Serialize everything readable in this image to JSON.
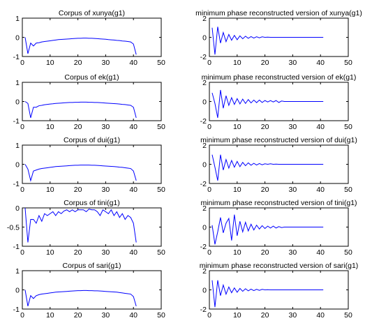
{
  "colors": {
    "line": "#0000ff",
    "axes": "#000000",
    "background": "#ffffff"
  },
  "chart_data": [
    {
      "type": "line",
      "title": "Corpus of xunya(g1)",
      "xlabel": "",
      "ylabel": "",
      "xlim": [
        0,
        50
      ],
      "ylim": [
        -1,
        1
      ],
      "xticks": [
        0,
        10,
        20,
        30,
        40,
        50
      ],
      "yticks": [
        -1,
        0,
        1
      ],
      "x": [
        1,
        2,
        3,
        4,
        5,
        6,
        7,
        8,
        9,
        10,
        11,
        12,
        13,
        14,
        15,
        16,
        17,
        18,
        19,
        20,
        21,
        22,
        23,
        24,
        25,
        26,
        27,
        28,
        29,
        30,
        31,
        32,
        33,
        34,
        35,
        36,
        37,
        38,
        39,
        40,
        41
      ],
      "values": [
        0.0,
        -0.85,
        -0.3,
        -0.45,
        -0.3,
        -0.28,
        -0.24,
        -0.22,
        -0.2,
        -0.18,
        -0.16,
        -0.14,
        -0.12,
        -0.11,
        -0.1,
        -0.09,
        -0.08,
        -0.07,
        -0.06,
        -0.05,
        -0.05,
        -0.04,
        -0.04,
        -0.05,
        -0.05,
        -0.06,
        -0.07,
        -0.08,
        -0.09,
        -0.1,
        -0.12,
        -0.13,
        -0.14,
        -0.16,
        -0.17,
        -0.19,
        -0.2,
        -0.22,
        -0.24,
        -0.35,
        -0.9
      ]
    },
    {
      "type": "line",
      "title": "minimum phase reconstructed version of xunya(g1)",
      "xlabel": "",
      "ylabel": "",
      "xlim": [
        0,
        50
      ],
      "ylim": [
        -2,
        2
      ],
      "xticks": [
        0,
        10,
        20,
        30,
        40,
        50
      ],
      "yticks": [
        -2,
        0,
        2
      ],
      "x": [
        1,
        2,
        3,
        4,
        5,
        6,
        7,
        8,
        9,
        10,
        11,
        12,
        13,
        14,
        15,
        16,
        17,
        18,
        19,
        20,
        21,
        22,
        23,
        24,
        25,
        26,
        27,
        28,
        29,
        30,
        31,
        32,
        33,
        34,
        35,
        36,
        37,
        38,
        39,
        40,
        41
      ],
      "values": [
        1.0,
        -1.8,
        1.1,
        -0.6,
        0.5,
        -0.45,
        0.3,
        -0.3,
        0.2,
        -0.25,
        0.15,
        -0.15,
        0.12,
        -0.1,
        0.08,
        -0.08,
        0.06,
        -0.05,
        0.05,
        0.0,
        0.02,
        0.0,
        0.0,
        0.0,
        0.0,
        0.0,
        0.0,
        0.0,
        0.0,
        0.0,
        0.0,
        0.0,
        0.0,
        0.0,
        0.0,
        0.0,
        0.0,
        0.0,
        0.0,
        0.0,
        0.0
      ]
    },
    {
      "type": "line",
      "title": "Corpus of ek(g1)",
      "xlabel": "",
      "ylabel": "",
      "xlim": [
        0,
        50
      ],
      "ylim": [
        -1,
        1
      ],
      "xticks": [
        0,
        10,
        20,
        30,
        40,
        50
      ],
      "yticks": [
        -1,
        0,
        1
      ],
      "x": [
        1,
        2,
        3,
        4,
        5,
        6,
        7,
        8,
        9,
        10,
        11,
        12,
        13,
        14,
        15,
        16,
        17,
        18,
        19,
        20,
        21,
        22,
        23,
        24,
        25,
        26,
        27,
        28,
        29,
        30,
        31,
        32,
        33,
        34,
        35,
        36,
        37,
        38,
        39,
        40,
        41
      ],
      "values": [
        0.0,
        -0.1,
        -0.85,
        -0.3,
        -0.3,
        -0.22,
        -0.2,
        -0.17,
        -0.15,
        -0.13,
        -0.12,
        -0.1,
        -0.09,
        -0.08,
        -0.07,
        -0.06,
        -0.05,
        -0.05,
        -0.04,
        -0.04,
        -0.03,
        -0.03,
        -0.03,
        -0.04,
        -0.04,
        -0.05,
        -0.05,
        -0.06,
        -0.07,
        -0.08,
        -0.09,
        -0.1,
        -0.11,
        -0.12,
        -0.13,
        -0.15,
        -0.16,
        -0.18,
        -0.2,
        -0.3,
        -0.85
      ]
    },
    {
      "type": "line",
      "title": "minimum phase reconstructed version of ek(g1)",
      "xlabel": "",
      "ylabel": "",
      "xlim": [
        0,
        50
      ],
      "ylim": [
        -2,
        2
      ],
      "xticks": [
        0,
        10,
        20,
        30,
        40,
        50
      ],
      "yticks": [
        -2,
        0,
        2
      ],
      "x": [
        1,
        2,
        3,
        4,
        5,
        6,
        7,
        8,
        9,
        10,
        11,
        12,
        13,
        14,
        15,
        16,
        17,
        18,
        19,
        20,
        21,
        22,
        23,
        24,
        25,
        26,
        27,
        28,
        29,
        30,
        31,
        32,
        33,
        34,
        35,
        36,
        37,
        38,
        39,
        40,
        41
      ],
      "values": [
        0.9,
        -0.2,
        -1.7,
        1.2,
        -0.7,
        0.6,
        -0.4,
        0.4,
        -0.3,
        0.3,
        -0.25,
        0.25,
        -0.2,
        0.2,
        -0.15,
        0.15,
        -0.12,
        0.15,
        -0.1,
        0.1,
        -0.05,
        0.1,
        -0.05,
        0.1,
        -0.1,
        0.05,
        0.0,
        0.0,
        0.0,
        0.0,
        0.0,
        0.0,
        0.0,
        0.0,
        0.0,
        0.0,
        0.0,
        0.0,
        0.0,
        0.0,
        0.0
      ]
    },
    {
      "type": "line",
      "title": "Corpus of dui(g1)",
      "xlabel": "",
      "ylabel": "",
      "xlim": [
        0,
        50
      ],
      "ylim": [
        -1,
        1
      ],
      "xticks": [
        0,
        10,
        20,
        30,
        40,
        50
      ],
      "yticks": [
        -1,
        0,
        1
      ],
      "x": [
        1,
        2,
        3,
        4,
        5,
        6,
        7,
        8,
        9,
        10,
        11,
        12,
        13,
        14,
        15,
        16,
        17,
        18,
        19,
        20,
        21,
        22,
        23,
        24,
        25,
        26,
        27,
        28,
        29,
        30,
        31,
        32,
        33,
        34,
        35,
        36,
        37,
        38,
        39,
        40,
        41
      ],
      "values": [
        0.0,
        -0.25,
        -0.85,
        -0.35,
        -0.3,
        -0.25,
        -0.22,
        -0.2,
        -0.18,
        -0.16,
        -0.14,
        -0.12,
        -0.11,
        -0.1,
        -0.09,
        -0.08,
        -0.07,
        -0.06,
        -0.05,
        -0.05,
        -0.04,
        -0.04,
        -0.04,
        -0.04,
        -0.05,
        -0.05,
        -0.06,
        -0.07,
        -0.08,
        -0.09,
        -0.1,
        -0.11,
        -0.12,
        -0.13,
        -0.15,
        -0.16,
        -0.18,
        -0.2,
        -0.22,
        -0.35,
        -0.85
      ]
    },
    {
      "type": "line",
      "title": "minimum phase reconstructed version of dui(g1)",
      "xlabel": "",
      "ylabel": "",
      "xlim": [
        0,
        50
      ],
      "ylim": [
        -2,
        2
      ],
      "xticks": [
        0,
        10,
        20,
        30,
        40,
        50
      ],
      "yticks": [
        -2,
        0,
        2
      ],
      "x": [
        1,
        2,
        3,
        4,
        5,
        6,
        7,
        8,
        9,
        10,
        11,
        12,
        13,
        14,
        15,
        16,
        17,
        18,
        19,
        20,
        21,
        22,
        23,
        24,
        25,
        26,
        27,
        28,
        29,
        30,
        31,
        32,
        33,
        34,
        35,
        36,
        37,
        38,
        39,
        40,
        41
      ],
      "values": [
        1.0,
        -0.3,
        -1.7,
        1.0,
        -0.6,
        0.5,
        -0.4,
        0.4,
        -0.3,
        0.3,
        -0.25,
        0.2,
        -0.15,
        0.15,
        -0.1,
        0.1,
        -0.08,
        0.08,
        -0.05,
        0.05,
        0.0,
        0.05,
        0.0,
        0.02,
        0.0,
        0.0,
        0.0,
        0.0,
        0.0,
        0.0,
        0.0,
        0.0,
        0.0,
        0.0,
        0.0,
        0.0,
        0.0,
        0.0,
        0.0,
        0.0,
        0.0
      ]
    },
    {
      "type": "line",
      "title": "Corpus of tini(g1)",
      "xlabel": "",
      "ylabel": "",
      "xlim": [
        0,
        50
      ],
      "ylim": [
        -1,
        0
      ],
      "xticks": [
        0,
        10,
        20,
        30,
        40,
        50
      ],
      "yticks": [
        -1,
        -0.5,
        0
      ],
      "x": [
        1,
        2,
        3,
        4,
        5,
        6,
        7,
        8,
        9,
        10,
        11,
        12,
        13,
        14,
        15,
        16,
        17,
        18,
        19,
        20,
        21,
        22,
        23,
        24,
        25,
        26,
        27,
        28,
        29,
        30,
        31,
        32,
        33,
        34,
        35,
        36,
        37,
        38,
        39,
        40,
        41
      ],
      "values": [
        0.0,
        -0.9,
        -0.3,
        -0.3,
        -0.4,
        -0.2,
        -0.35,
        -0.15,
        -0.2,
        -0.15,
        -0.1,
        -0.2,
        -0.1,
        -0.15,
        -0.08,
        -0.05,
        -0.1,
        -0.05,
        -0.1,
        -0.05,
        -0.05,
        -0.05,
        -0.1,
        -0.03,
        -0.05,
        -0.05,
        -0.1,
        -0.2,
        -0.05,
        -0.1,
        -0.15,
        -0.05,
        -0.2,
        -0.1,
        -0.25,
        -0.15,
        -0.3,
        -0.2,
        -0.25,
        -0.4,
        -0.9
      ]
    },
    {
      "type": "line",
      "title": "minimum phase reconstructed version of tini(g1)",
      "xlabel": "",
      "ylabel": "",
      "xlim": [
        0,
        50
      ],
      "ylim": [
        -2,
        2
      ],
      "xticks": [
        0,
        10,
        20,
        30,
        40,
        50
      ],
      "yticks": [
        -2,
        0,
        2
      ],
      "x": [
        1,
        2,
        3,
        4,
        5,
        6,
        7,
        8,
        9,
        10,
        11,
        12,
        13,
        14,
        15,
        16,
        17,
        18,
        19,
        20,
        21,
        22,
        23,
        24,
        25,
        26,
        27,
        28,
        29,
        30,
        31,
        32,
        33,
        34,
        35,
        36,
        37,
        38,
        39,
        40,
        41
      ],
      "values": [
        0.2,
        -1.8,
        -0.5,
        1.0,
        -0.6,
        0.4,
        0.9,
        -1.4,
        1.3,
        -0.9,
        0.6,
        -0.5,
        0.5,
        -0.4,
        0.3,
        -0.3,
        0.2,
        -0.2,
        0.15,
        -0.15,
        0.1,
        -0.1,
        0.1,
        -0.1,
        0.05,
        -0.05,
        0.0,
        0.0,
        0.0,
        0.0,
        0.0,
        0.0,
        0.0,
        0.0,
        0.0,
        0.0,
        0.0,
        0.0,
        0.0,
        0.0,
        0.0
      ]
    },
    {
      "type": "line",
      "title": "Corpus of sari(g1)",
      "xlabel": "",
      "ylabel": "",
      "xlim": [
        0,
        50
      ],
      "ylim": [
        -1,
        1
      ],
      "xticks": [
        0,
        10,
        20,
        30,
        40,
        50
      ],
      "yticks": [
        -1,
        0,
        1
      ],
      "x": [
        1,
        2,
        3,
        4,
        5,
        6,
        7,
        8,
        9,
        10,
        11,
        12,
        13,
        14,
        15,
        16,
        17,
        18,
        19,
        20,
        21,
        22,
        23,
        24,
        25,
        26,
        27,
        28,
        29,
        30,
        31,
        32,
        33,
        34,
        35,
        36,
        37,
        38,
        39,
        40,
        41
      ],
      "values": [
        0.0,
        -0.85,
        -0.3,
        -0.45,
        -0.3,
        -0.25,
        -0.22,
        -0.2,
        -0.18,
        -0.16,
        -0.14,
        -0.12,
        -0.11,
        -0.1,
        -0.09,
        -0.08,
        -0.07,
        -0.06,
        -0.05,
        -0.04,
        -0.04,
        -0.03,
        -0.03,
        -0.04,
        -0.04,
        -0.05,
        -0.05,
        -0.06,
        -0.07,
        -0.08,
        -0.09,
        -0.1,
        -0.11,
        -0.12,
        -0.14,
        -0.16,
        -0.18,
        -0.2,
        -0.22,
        -0.35,
        -0.85
      ]
    },
    {
      "type": "line",
      "title": "minimum phase reconstructed version of sari(g1)",
      "xlabel": "",
      "ylabel": "",
      "xlim": [
        0,
        50
      ],
      "ylim": [
        -2,
        2
      ],
      "xticks": [
        0,
        10,
        20,
        30,
        40,
        50
      ],
      "yticks": [
        -2,
        0,
        2
      ],
      "x": [
        1,
        2,
        3,
        4,
        5,
        6,
        7,
        8,
        9,
        10,
        11,
        12,
        13,
        14,
        15,
        16,
        17,
        18,
        19,
        20,
        21,
        22,
        23,
        24,
        25,
        26,
        27,
        28,
        29,
        30,
        31,
        32,
        33,
        34,
        35,
        36,
        37,
        38,
        39,
        40,
        41
      ],
      "values": [
        1.0,
        -1.8,
        1.0,
        -0.6,
        0.5,
        -0.45,
        0.3,
        -0.3,
        0.2,
        -0.25,
        0.15,
        -0.15,
        0.12,
        -0.1,
        0.08,
        -0.08,
        0.06,
        -0.05,
        0.05,
        0.0,
        0.02,
        0.0,
        0.0,
        0.0,
        0.0,
        0.0,
        0.0,
        0.0,
        0.0,
        0.0,
        0.0,
        0.0,
        0.0,
        0.0,
        0.0,
        0.0,
        0.0,
        0.0,
        0.0,
        0.0,
        0.0
      ]
    }
  ]
}
